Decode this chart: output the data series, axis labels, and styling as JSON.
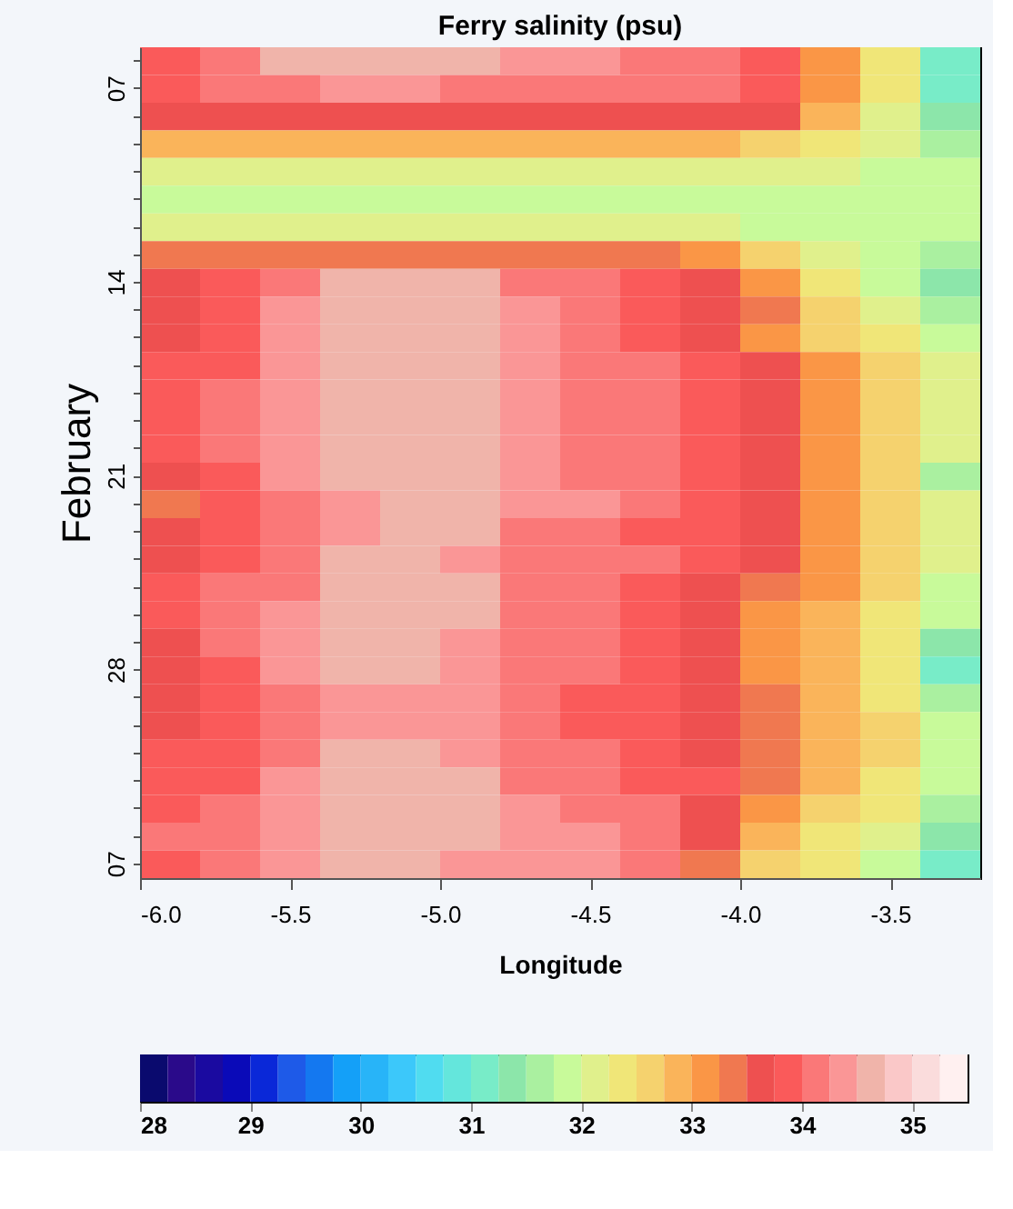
{
  "chart_data": {
    "type": "heatmap",
    "title": "Ferry salinity (psu)",
    "xlabel": "Longitude",
    "ylabel": "February",
    "x": [
      -5.9,
      -5.7,
      -5.5,
      -5.3,
      -5.1,
      -4.9,
      -4.7,
      -4.5,
      -4.3,
      -4.1,
      -3.9,
      -3.7,
      -3.5,
      -3.3
    ],
    "xlim": [
      -6.0,
      -3.2
    ],
    "xticks": [
      {
        "value": -6.0,
        "label": "-6.0"
      },
      {
        "value": -5.5,
        "label": "-5.5"
      },
      {
        "value": -5.0,
        "label": "-5.0"
      },
      {
        "value": -4.5,
        "label": "-4.5"
      },
      {
        "value": -4.0,
        "label": "-4.0"
      },
      {
        "value": -3.5,
        "label": "-3.5"
      }
    ],
    "y_categories": [
      null,
      "07",
      null,
      null,
      null,
      null,
      null,
      null,
      "14",
      null,
      null,
      null,
      null,
      null,
      null,
      "21",
      null,
      null,
      null,
      null,
      null,
      null,
      "28",
      null,
      null,
      null,
      null,
      null,
      null,
      "07"
    ],
    "cells": [
      [
        33.9,
        34.1,
        34.6,
        34.6,
        34.6,
        34.6,
        34.4,
        34.4,
        34.1,
        34.1,
        33.9,
        33.1,
        32.4,
        31.1
      ],
      [
        33.9,
        34.1,
        34.1,
        34.4,
        34.4,
        34.1,
        34.1,
        34.1,
        34.1,
        34.1,
        33.9,
        33.1,
        32.4,
        31.1
      ],
      [
        33.6,
        33.6,
        33.6,
        33.6,
        33.6,
        33.6,
        33.6,
        33.6,
        33.6,
        33.6,
        33.6,
        32.9,
        32.1,
        31.4
      ],
      [
        32.9,
        32.9,
        32.9,
        32.9,
        32.9,
        32.9,
        32.9,
        32.9,
        32.9,
        32.9,
        32.6,
        32.4,
        32.1,
        31.6
      ],
      [
        32.1,
        32.1,
        32.1,
        32.1,
        32.1,
        32.1,
        32.1,
        32.1,
        32.1,
        32.1,
        32.1,
        32.1,
        31.9,
        31.9
      ],
      [
        31.9,
        31.9,
        31.9,
        31.9,
        31.9,
        31.9,
        31.9,
        31.9,
        31.9,
        31.9,
        31.9,
        31.9,
        31.9,
        31.9
      ],
      [
        32.1,
        32.1,
        32.1,
        32.1,
        32.1,
        32.1,
        32.1,
        32.1,
        32.1,
        32.1,
        31.9,
        31.9,
        31.9,
        31.9
      ],
      [
        33.4,
        33.4,
        33.4,
        33.4,
        33.4,
        33.4,
        33.4,
        33.4,
        33.4,
        33.1,
        32.6,
        32.1,
        31.9,
        31.6
      ],
      [
        33.6,
        33.9,
        34.1,
        34.6,
        34.6,
        34.6,
        34.1,
        34.1,
        33.9,
        33.6,
        33.1,
        32.4,
        31.9,
        31.4
      ],
      [
        33.6,
        33.9,
        34.4,
        34.6,
        34.6,
        34.6,
        34.4,
        34.1,
        33.9,
        33.6,
        33.4,
        32.6,
        32.1,
        31.6
      ],
      [
        33.6,
        33.9,
        34.4,
        34.6,
        34.6,
        34.6,
        34.4,
        34.1,
        33.9,
        33.6,
        33.1,
        32.6,
        32.4,
        31.9
      ],
      [
        33.9,
        33.9,
        34.4,
        34.6,
        34.6,
        34.6,
        34.4,
        34.1,
        34.1,
        33.9,
        33.6,
        33.1,
        32.6,
        32.1
      ],
      [
        33.9,
        34.1,
        34.4,
        34.6,
        34.6,
        34.6,
        34.4,
        34.1,
        34.1,
        33.9,
        33.6,
        33.1,
        32.6,
        32.1
      ],
      [
        33.9,
        34.1,
        34.4,
        34.6,
        34.6,
        34.6,
        34.4,
        34.1,
        34.1,
        33.9,
        33.6,
        33.1,
        32.6,
        32.1
      ],
      [
        33.9,
        34.1,
        34.4,
        34.6,
        34.6,
        34.6,
        34.4,
        34.1,
        34.1,
        33.9,
        33.6,
        33.1,
        32.6,
        32.1
      ],
      [
        33.6,
        33.9,
        34.4,
        34.6,
        34.6,
        34.6,
        34.4,
        34.1,
        34.1,
        33.9,
        33.6,
        33.1,
        32.6,
        31.6
      ],
      [
        33.4,
        33.9,
        34.1,
        34.4,
        34.6,
        34.6,
        34.4,
        34.4,
        34.1,
        33.9,
        33.6,
        33.1,
        32.6,
        32.1
      ],
      [
        33.6,
        33.9,
        34.1,
        34.4,
        34.6,
        34.6,
        34.1,
        34.1,
        33.9,
        33.9,
        33.6,
        33.1,
        32.6,
        32.1
      ],
      [
        33.6,
        33.9,
        34.1,
        34.6,
        34.6,
        34.4,
        34.1,
        34.1,
        34.1,
        33.9,
        33.6,
        33.1,
        32.6,
        32.1
      ],
      [
        33.9,
        34.1,
        34.1,
        34.6,
        34.6,
        34.6,
        34.1,
        34.1,
        33.9,
        33.6,
        33.4,
        33.1,
        32.6,
        31.9
      ],
      [
        33.9,
        34.1,
        34.4,
        34.6,
        34.6,
        34.6,
        34.1,
        34.1,
        33.9,
        33.6,
        33.1,
        32.9,
        32.4,
        31.9
      ],
      [
        33.6,
        34.1,
        34.4,
        34.6,
        34.6,
        34.4,
        34.1,
        34.1,
        33.9,
        33.6,
        33.1,
        32.9,
        32.4,
        31.4
      ],
      [
        33.6,
        33.9,
        34.4,
        34.6,
        34.6,
        34.4,
        34.1,
        34.1,
        33.9,
        33.6,
        33.1,
        32.9,
        32.4,
        31.1
      ],
      [
        33.6,
        33.9,
        34.1,
        34.4,
        34.4,
        34.4,
        34.1,
        33.9,
        33.9,
        33.6,
        33.4,
        32.9,
        32.4,
        31.6
      ],
      [
        33.6,
        33.9,
        34.1,
        34.4,
        34.4,
        34.4,
        34.1,
        33.9,
        33.9,
        33.6,
        33.4,
        32.9,
        32.6,
        31.9
      ],
      [
        33.9,
        33.9,
        34.1,
        34.6,
        34.6,
        34.4,
        34.1,
        34.1,
        33.9,
        33.6,
        33.4,
        32.9,
        32.6,
        31.9
      ],
      [
        33.9,
        33.9,
        34.4,
        34.6,
        34.6,
        34.6,
        34.1,
        34.1,
        33.9,
        33.9,
        33.4,
        32.9,
        32.4,
        31.9
      ],
      [
        33.9,
        34.1,
        34.4,
        34.6,
        34.6,
        34.6,
        34.4,
        34.1,
        34.1,
        33.6,
        33.1,
        32.6,
        32.4,
        31.6
      ],
      [
        34.1,
        34.1,
        34.4,
        34.6,
        34.6,
        34.6,
        34.4,
        34.4,
        34.1,
        33.6,
        32.9,
        32.4,
        32.1,
        31.4
      ],
      [
        33.9,
        34.1,
        34.4,
        34.6,
        34.6,
        34.4,
        34.4,
        34.4,
        34.1,
        33.4,
        32.6,
        32.4,
        31.9,
        31.1
      ]
    ],
    "clim": [
      28,
      35.5
    ],
    "cticks": [
      28,
      29,
      30,
      31,
      32,
      33,
      34,
      35
    ],
    "colors": [
      "#0a0a6e",
      "#2a0a8a",
      "#1a0aa0",
      "#0a0ab8",
      "#0a28d8",
      "#1e5ae8",
      "#1478f0",
      "#14a0f8",
      "#28b4f8",
      "#3cc8fa",
      "#50dcf0",
      "#64e6dc",
      "#78ecc8",
      "#8ce6aa",
      "#aaf0a0",
      "#c8fa9a",
      "#e0f08c",
      "#f0e678",
      "#f5d26e",
      "#fab45a",
      "#fa9646",
      "#f07850",
      "#ee5050",
      "#fa5a5a",
      "#fa7878",
      "#fa9696",
      "#f0b4aa",
      "#fac8c8",
      "#fadcdc",
      "#fff0f0"
    ]
  }
}
